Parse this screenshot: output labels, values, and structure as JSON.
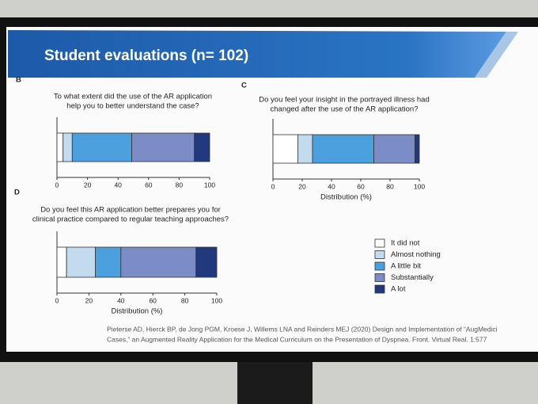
{
  "slide": {
    "title": "Student evaluations (n= 102)",
    "citation": [
      "Pieterse AD, Hierck BP, de Jong PGM, Kroese J, Willems LNA and Reinders MEJ (2020) Design and Implementation of “AugMedici",
      "Cases,” an Augmented Reality Application for the Medical Curriculum on the Presentation of Dyspnea. Front. Virtual Real. 1:577"
    ]
  },
  "legend": {
    "position": "lower right",
    "series": [
      {
        "name": "It did not",
        "color": "#ffffff"
      },
      {
        "name": "Almost nothing",
        "color": "#c3dbef"
      },
      {
        "name": "A little bit",
        "color": "#4b9fdc"
      },
      {
        "name": "Substantially",
        "color": "#7b8cc6"
      },
      {
        "name": "A lot",
        "color": "#22397e"
      }
    ]
  },
  "chart_data": [
    {
      "type": "stacked-bar",
      "label": "B",
      "title": [
        "To what extent did the use of the AR application",
        "help you to better understand the case?"
      ],
      "values": [
        4,
        6,
        39,
        41,
        10
      ],
      "xlim": [
        0,
        100
      ],
      "xticks": [
        0,
        20,
        40,
        60,
        80,
        100
      ]
    },
    {
      "type": "stacked-bar",
      "label": "C",
      "title": [
        "Do you feel your insight in the portrayed illness had",
        "changed after the use of the AR application?"
      ],
      "values": [
        17,
        10,
        42,
        28,
        3
      ],
      "xlim": [
        0,
        100
      ],
      "xticks": [
        0,
        20,
        40,
        60,
        80,
        100
      ],
      "xlabel": "Distribution (%)"
    },
    {
      "type": "stacked-bar",
      "label": "D",
      "title": [
        "Do you feel this AR application better prepares you for",
        "clinical practice compared to regular teaching approaches?"
      ],
      "values": [
        6,
        18,
        16,
        47,
        13
      ],
      "xlim": [
        0,
        100
      ],
      "xticks": [
        0,
        20,
        40,
        60,
        80,
        100
      ],
      "xlabel": "Distribution (%)"
    }
  ]
}
